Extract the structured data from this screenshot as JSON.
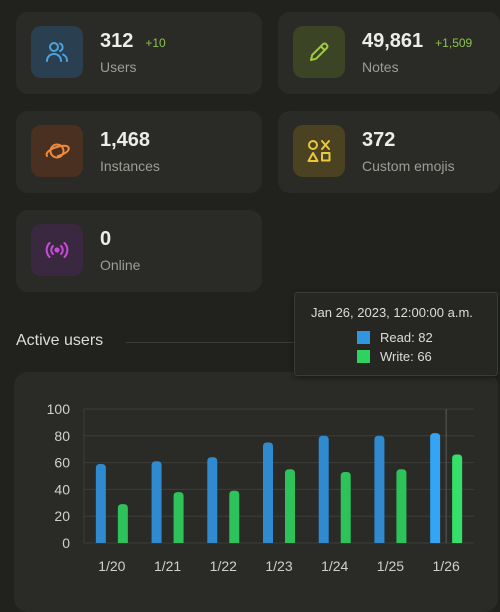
{
  "stats": [
    {
      "value": "312",
      "delta": "+10",
      "label": "Users",
      "icon": "users-icon",
      "icon_bg": "#2a3f4f",
      "icon_color": "#4aa3df"
    },
    {
      "value": "49,861",
      "delta": "+1,509",
      "label": "Notes",
      "icon": "pencil-icon",
      "icon_bg": "#3b4424",
      "icon_color": "#9ccc3c"
    },
    {
      "value": "1,468",
      "delta": "",
      "label": "Instances",
      "icon": "globe-icon",
      "icon_bg": "#4a3020",
      "icon_color": "#f08a3c"
    },
    {
      "value": "372",
      "delta": "",
      "label": "Custom emojis",
      "icon": "shapes-icon",
      "icon_bg": "#4a4220",
      "icon_color": "#e9c83a"
    },
    {
      "value": "0",
      "delta": "",
      "label": "Online",
      "icon": "broadcast-icon",
      "icon_bg": "#3a2840",
      "icon_color": "#c84ad8"
    }
  ],
  "section": {
    "title": "Active users"
  },
  "tooltip": {
    "title": "Jan 26, 2023, 12:00:00 a.m.",
    "rows": [
      {
        "label": "Read: 82",
        "color": "#2f97e0"
      },
      {
        "label": "Write: 66",
        "color": "#2ed25e"
      }
    ]
  },
  "chart_data": {
    "type": "bar",
    "categories": [
      "1/20",
      "1/21",
      "1/22",
      "1/23",
      "1/24",
      "1/25",
      "1/26"
    ],
    "series": [
      {
        "name": "Read",
        "values": [
          59,
          61,
          64,
          75,
          80,
          80,
          82
        ],
        "color": "#2f8ad0"
      },
      {
        "name": "Write",
        "values": [
          29,
          38,
          39,
          55,
          53,
          55,
          66
        ],
        "color": "#2ec25a"
      }
    ],
    "ylim": [
      0,
      100
    ],
    "yticks": [
      0,
      20,
      40,
      60,
      80,
      100
    ],
    "grid": true,
    "highlight_index": 6,
    "highlight_colors": {
      "Read": "#34a4f4",
      "Write": "#35e06a"
    }
  }
}
